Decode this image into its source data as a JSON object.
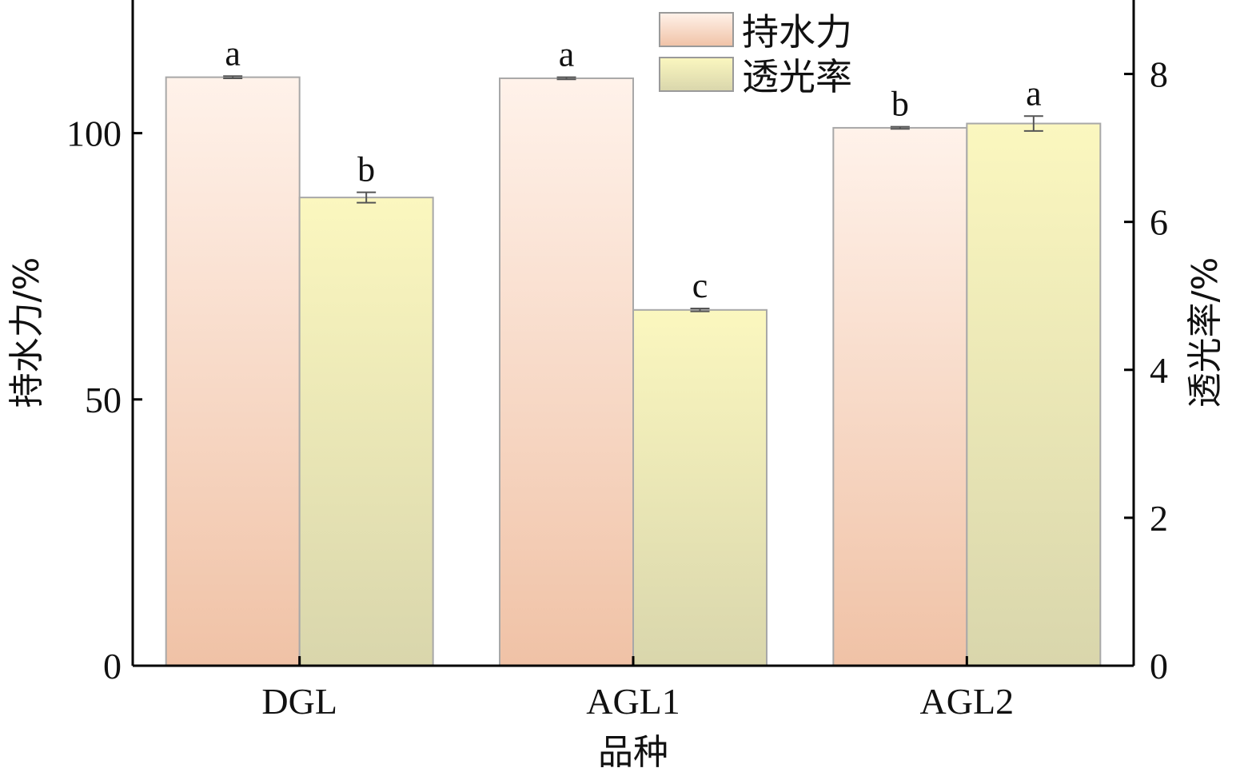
{
  "chart_data": {
    "type": "bar",
    "categories": [
      "DGL",
      "AGL1",
      "AGL2"
    ],
    "xlabel": "品种",
    "series": [
      {
        "name": "持水力",
        "axis": "left",
        "values": [
          110.5,
          110.3,
          101.0
        ],
        "errors": [
          0.2,
          0.2,
          0.2
        ],
        "letters": [
          "a",
          "a",
          "b"
        ],
        "color_top": "#fff2ea",
        "color_bottom": "#f0c2a6"
      },
      {
        "name": "透光率",
        "axis": "right",
        "values": [
          6.33,
          4.81,
          7.33
        ],
        "errors": [
          0.07,
          0.02,
          0.1
        ],
        "letters": [
          "b",
          "c",
          "a"
        ],
        "color_top": "#fbf7bf",
        "color_bottom": "#d9d6ac"
      }
    ],
    "left_axis": {
      "label": "持水力/%",
      "ylim": [
        0,
        125
      ],
      "ticks": [
        "0",
        "50",
        "100"
      ],
      "tick_values": [
        0,
        50,
        100
      ]
    },
    "right_axis": {
      "label": "透光率/%",
      "ylim": [
        0,
        9
      ],
      "ticks": [
        "0",
        "2",
        "4",
        "6",
        "8"
      ],
      "tick_values": [
        0,
        2,
        4,
        6,
        8
      ]
    },
    "legend": {
      "position": "top-center",
      "items": [
        "持水力",
        "透光率"
      ]
    },
    "grid": false
  }
}
